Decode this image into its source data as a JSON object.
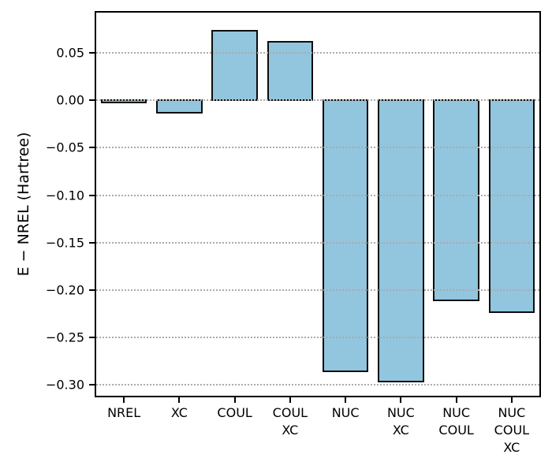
{
  "figure": {
    "background_color": "#ffffff",
    "title": ""
  },
  "chart_data": {
    "type": "bar",
    "title": "",
    "xlabel": "",
    "ylabel": "E − NREL (Hartree)",
    "categories": [
      "NREL",
      "XC",
      "COUL",
      "COUL\nXC",
      "NUC",
      "NUC\nXC",
      "NUC\nCOUL",
      "NUC\nCOUL\nXC"
    ],
    "values": [
      0.0,
      -0.013,
      0.073,
      0.061,
      -0.285,
      -0.296,
      -0.211,
      -0.223
    ],
    "ylim": [
      -0.3113,
      0.0923
    ],
    "yticks": [
      0.05,
      0.0,
      -0.05,
      -0.1,
      -0.15,
      -0.2,
      -0.25,
      -0.3
    ],
    "ytick_labels": [
      "0.05",
      "0.00",
      "−0.05",
      "−0.10",
      "−0.15",
      "−0.20",
      "−0.25",
      "−0.30"
    ],
    "bar_color": "#92c5de",
    "bar_edge_color": "#0d0d0d",
    "grid": "horizontal dotted, drawn over bars",
    "gridline_color": "#ababab",
    "legend": "none",
    "spines": "full box, black"
  }
}
